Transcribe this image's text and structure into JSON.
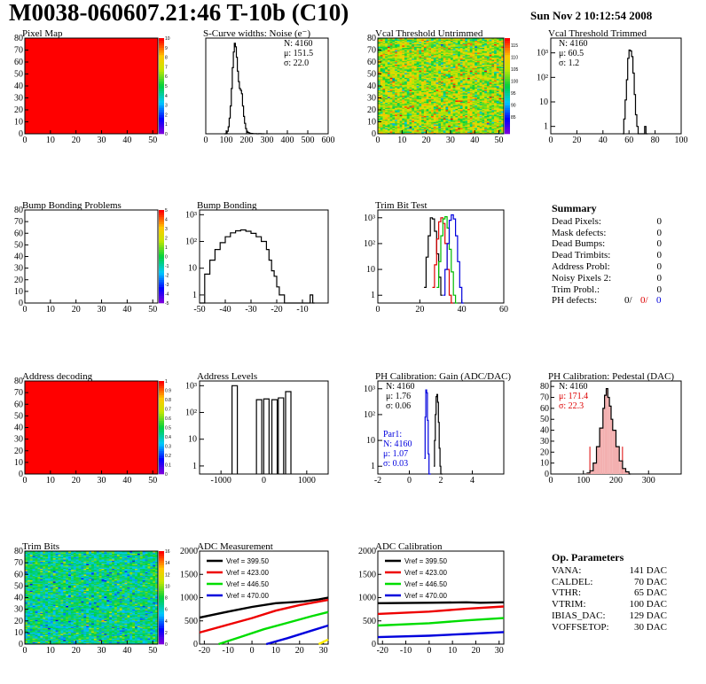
{
  "header": {
    "title": "M0038-060607.21:46 T-10b (C10)",
    "timestamp": "Sun Nov  2 10:12:54 2008"
  },
  "summary": {
    "title": "Summary",
    "rows": [
      {
        "label": "Dead Pixels:",
        "value": "0"
      },
      {
        "label": "Mask defects:",
        "value": "0"
      },
      {
        "label": "Dead Bumps:",
        "value": "0"
      },
      {
        "label": "Dead Trimbits:",
        "value": "0"
      },
      {
        "label": "Address Probl:",
        "value": "0"
      },
      {
        "label": "Noisy Pixels 2:",
        "value": "0"
      },
      {
        "label": "Trim Probl.:",
        "value": "0"
      }
    ],
    "ph_defects": {
      "label": "PH defects:",
      "v1": "0/",
      "v2": "0/",
      "v3": "0",
      "color1": "#000000",
      "color2": "#dd0000",
      "color3": "#0000dd"
    }
  },
  "op_parameters": {
    "title": "Op. Parameters",
    "rows": [
      {
        "label": "VANA:",
        "value": "141 DAC"
      },
      {
        "label": "CALDEL:",
        "value": "70 DAC"
      },
      {
        "label": "VTHR:",
        "value": "65 DAC"
      },
      {
        "label": "VTRIM:",
        "value": "100 DAC"
      },
      {
        "label": "IBIAS_DAC:",
        "value": "129 DAC"
      },
      {
        "label": "VOFFSETOP:",
        "value": "30 DAC"
      }
    ]
  },
  "chart_data": [
    {
      "id": "pixel-map",
      "type": "heatmap",
      "title": "Pixel Map",
      "xlim": [
        0,
        52
      ],
      "ylim": [
        0,
        80
      ],
      "xticks": [
        "0",
        "10",
        "20",
        "30",
        "40",
        "50"
      ],
      "yticks": [
        "0",
        "10",
        "20",
        "30",
        "40",
        "50",
        "60",
        "70",
        "80"
      ],
      "zlim": [
        0,
        10
      ],
      "zticks": [
        "0",
        "1",
        "2",
        "3",
        "4",
        "5",
        "6",
        "7",
        "8",
        "9",
        "10"
      ],
      "fill_value": 10,
      "fill_color": "#ff0000"
    },
    {
      "id": "scurve",
      "type": "histogram",
      "title": "S-Curve widths: Noise (e⁻)",
      "xlim": [
        0,
        600
      ],
      "ylim": [
        0,
        550
      ],
      "xticks": [
        "0",
        "100",
        "200",
        "300",
        "400",
        "500",
        "600"
      ],
      "yticks": [],
      "stats": [
        {
          "text": "N: 4160",
          "color": "#000"
        },
        {
          "text": "μ: 151.5",
          "color": "#000"
        },
        {
          "text": "σ: 22.0",
          "color": "#000"
        }
      ],
      "series": [
        {
          "color": "#000",
          "x": [
            90,
            100,
            105,
            110,
            115,
            120,
            125,
            130,
            135,
            140,
            145,
            150,
            155,
            160,
            165,
            170,
            175,
            180,
            185,
            190,
            195,
            200,
            205,
            210,
            215,
            220,
            230,
            240,
            250,
            260,
            270,
            280
          ],
          "values": [
            0,
            5,
            15,
            40,
            90,
            160,
            260,
            380,
            470,
            520,
            500,
            440,
            360,
            300,
            260,
            250,
            230,
            160,
            100,
            60,
            30,
            15,
            8,
            6,
            3,
            2,
            1,
            1,
            0,
            1,
            0,
            0
          ]
        }
      ]
    },
    {
      "id": "vcal-untrimmed",
      "type": "heatmap",
      "title": "Vcal Threshold Untrimmed",
      "xlim": [
        0,
        52
      ],
      "ylim": [
        0,
        80
      ],
      "xticks": [
        "0",
        "10",
        "20",
        "30",
        "40",
        "50"
      ],
      "yticks": [
        "0",
        "10",
        "20",
        "30",
        "40",
        "50",
        "60",
        "70",
        "80"
      ],
      "zlim": [
        78,
        118
      ],
      "zticks": [
        "85",
        "90",
        "95",
        "100",
        "105",
        "110",
        "115"
      ],
      "mean": 104,
      "spread": 5
    },
    {
      "id": "vcal-trimmed",
      "type": "histogram",
      "title": "Vcal Threshold Trimmed",
      "xlim": [
        0,
        100
      ],
      "ylog": true,
      "ylim": [
        0.5,
        4000
      ],
      "xticks": [
        "0",
        "20",
        "40",
        "60",
        "80",
        "100"
      ],
      "yticks": [
        "1",
        "10",
        "10²",
        "10³"
      ],
      "stats": [
        {
          "text": "N: 4160",
          "color": "#000"
        },
        {
          "text": "μ: 60.5",
          "color": "#000"
        },
        {
          "text": "σ:  1.2",
          "color": "#000"
        }
      ],
      "series": [
        {
          "color": "#000",
          "x": [
            55,
            56,
            57,
            58,
            59,
            60,
            61,
            62,
            63,
            64,
            65,
            66,
            67,
            72,
            73
          ],
          "values": [
            0,
            2,
            12,
            80,
            600,
            1300,
            1200,
            700,
            150,
            20,
            3,
            1,
            0,
            1,
            0
          ]
        }
      ]
    },
    {
      "id": "bump-bonding-problems",
      "type": "heatmap",
      "title": "Bump Bonding Problems",
      "xlim": [
        0,
        52
      ],
      "ylim": [
        0,
        80
      ],
      "xticks": [
        "0",
        "10",
        "20",
        "30",
        "40",
        "50"
      ],
      "yticks": [
        "0",
        "10",
        "20",
        "30",
        "40",
        "50",
        "60",
        "70",
        "80"
      ],
      "zlim": [
        -5,
        5
      ],
      "zticks": [
        "-5",
        "-4",
        "-3",
        "-2",
        "-1",
        "0",
        "1",
        "2",
        "3",
        "4",
        "5"
      ],
      "fill_value": null,
      "fill_color": "#ffffff"
    },
    {
      "id": "bump-bonding",
      "type": "histogram",
      "title": "Bump Bonding",
      "xlim": [
        -50,
        0
      ],
      "ylog": true,
      "ylim": [
        0.5,
        1500
      ],
      "xticks": [
        "-50",
        "-40",
        "-30",
        "-20",
        "-10"
      ],
      "yticks": [
        "1",
        "10",
        "10²",
        "10³"
      ],
      "series": [
        {
          "color": "#000",
          "x": [
            -50,
            -48,
            -46,
            -44,
            -42,
            -40,
            -38,
            -36,
            -34,
            -32,
            -30,
            -28,
            -26,
            -24,
            -23,
            -22,
            -21,
            -20,
            -19,
            -18,
            -17,
            -7,
            -6
          ],
          "values": [
            0,
            6,
            20,
            50,
            90,
            150,
            210,
            250,
            270,
            240,
            200,
            150,
            100,
            50,
            20,
            8,
            5,
            2,
            1,
            1,
            0,
            1,
            0
          ]
        }
      ]
    },
    {
      "id": "trim-bit-test",
      "type": "histogram",
      "title": "Trim Bit Test",
      "xlim": [
        0,
        60
      ],
      "ylog": true,
      "ylim": [
        0.5,
        2000
      ],
      "xticks": [
        "0",
        "20",
        "40",
        "60"
      ],
      "yticks": [
        "1",
        "10",
        "10²",
        "10³"
      ],
      "series": [
        {
          "name": "",
          "color": "#000000",
          "x": [
            22,
            23,
            24,
            25,
            26,
            27,
            28,
            29,
            30
          ],
          "values": [
            2,
            30,
            200,
            1000,
            900,
            300,
            40,
            5,
            1
          ]
        },
        {
          "name": "",
          "color": "#dd0000",
          "x": [
            26,
            27,
            28,
            29,
            30,
            31,
            32,
            33,
            34,
            35
          ],
          "values": [
            2,
            15,
            150,
            700,
            1000,
            600,
            100,
            10,
            1,
            0
          ]
        },
        {
          "name": "",
          "color": "#00bb00",
          "x": [
            28,
            29,
            30,
            31,
            32,
            33,
            34,
            35,
            36,
            37
          ],
          "values": [
            2,
            20,
            200,
            900,
            1100,
            400,
            60,
            8,
            1,
            0
          ]
        },
        {
          "name": "",
          "color": "#0000dd",
          "x": [
            31,
            32,
            33,
            34,
            35,
            36,
            37,
            38,
            39,
            40
          ],
          "values": [
            1,
            10,
            100,
            800,
            1300,
            900,
            200,
            20,
            2,
            0
          ]
        }
      ]
    },
    {
      "id": "address-decoding",
      "type": "heatmap",
      "title": "Address decoding",
      "xlim": [
        0,
        52
      ],
      "ylim": [
        0,
        80
      ],
      "xticks": [
        "0",
        "10",
        "20",
        "30",
        "40",
        "50"
      ],
      "yticks": [
        "0",
        "10",
        "20",
        "30",
        "40",
        "50",
        "60",
        "70",
        "80"
      ],
      "zlim": [
        0,
        1
      ],
      "zticks": [
        "0",
        "0.1",
        "0.2",
        "0.3",
        "0.4",
        "0.5",
        "0.6",
        "0.7",
        "0.8",
        "0.9",
        "1"
      ],
      "fill_value": 1,
      "fill_color": "#ff0000"
    },
    {
      "id": "address-levels",
      "type": "histogram",
      "title": "Address Levels",
      "xlim": [
        -1500,
        1500
      ],
      "ylog": true,
      "ylim": [
        0.5,
        1500
      ],
      "xticks": [
        "-1000",
        "0",
        "1000"
      ],
      "yticks": [
        "1",
        "10",
        "10²",
        "10³"
      ],
      "series": [
        {
          "color": "#000",
          "peaks": [
            -660,
            -90,
            80,
            270,
            420,
            590
          ],
          "heights": [
            1000,
            300,
            320,
            300,
            350,
            600
          ]
        }
      ]
    },
    {
      "id": "ph-gain",
      "type": "histogram",
      "title": "PH Calibration: Gain (ADC/DAC)",
      "xlim": [
        -2,
        6
      ],
      "ylog": true,
      "ylim": [
        0.5,
        2000
      ],
      "xticks": [
        "-2",
        "0",
        "2",
        "4"
      ],
      "yticks": [
        "1",
        "10",
        "10²",
        "10³"
      ],
      "stats": [
        {
          "text": "N: 4160",
          "color": "#000"
        },
        {
          "text": "μ: 1.76",
          "color": "#000"
        },
        {
          "text": "σ: 0.06",
          "color": "#000"
        }
      ],
      "stats2": [
        {
          "text": "Par1:",
          "color": "#0000dd"
        },
        {
          "text": "N: 4160",
          "color": "#0000dd"
        },
        {
          "text": "μ: 1.07",
          "color": "#0000dd"
        },
        {
          "text": "σ: 0.03",
          "color": "#0000dd"
        }
      ],
      "series": [
        {
          "name": "",
          "color": "#000000",
          "x": [
            1.55,
            1.6,
            1.65,
            1.7,
            1.75,
            1.8,
            1.85,
            1.9,
            1.95,
            2.0
          ],
          "values": [
            1,
            10,
            100,
            500,
            600,
            300,
            50,
            5,
            1,
            0
          ]
        },
        {
          "name": "",
          "color": "#0000dd",
          "x": [
            0.95,
            1.0,
            1.05,
            1.1,
            1.15,
            1.2,
            1.25
          ],
          "values": [
            2,
            80,
            900,
            700,
            60,
            3,
            0
          ]
        }
      ]
    },
    {
      "id": "ph-pedestal",
      "type": "histogram",
      "title": "PH Calibration: Pedestal (DAC)",
      "xlim": [
        0,
        400
      ],
      "ylim": [
        0,
        85
      ],
      "xticks": [
        "0",
        "100",
        "200",
        "300"
      ],
      "yticks": [
        "0",
        "10",
        "20",
        "30",
        "40",
        "50",
        "60",
        "70",
        "80"
      ],
      "stats": [
        {
          "text": "N: 4160",
          "color": "#000"
        },
        {
          "text": "μ: 171.4",
          "color": "#dd0000"
        },
        {
          "text": "σ: 22.3",
          "color": "#dd0000"
        }
      ],
      "markers": [
        120,
        220
      ],
      "series": [
        {
          "color": "#000",
          "x": [
            110,
            120,
            130,
            140,
            150,
            160,
            165,
            170,
            175,
            180,
            185,
            190,
            200,
            210,
            220,
            230,
            240
          ],
          "values": [
            1,
            3,
            10,
            25,
            42,
            60,
            72,
            78,
            70,
            62,
            50,
            40,
            25,
            12,
            5,
            2,
            0
          ]
        }
      ]
    },
    {
      "id": "trim-bits",
      "type": "heatmap",
      "title": "Trim Bits",
      "xlim": [
        0,
        52
      ],
      "ylim": [
        0,
        80
      ],
      "xticks": [
        "0",
        "10",
        "20",
        "30",
        "40",
        "50"
      ],
      "yticks": [
        "0",
        "10",
        "20",
        "30",
        "40",
        "50",
        "60",
        "70",
        "80"
      ],
      "zlim": [
        0,
        16
      ],
      "zticks": [
        "0",
        "2",
        "4",
        "6",
        "8",
        "10",
        "12",
        "14",
        "16"
      ],
      "mean": 7,
      "spread": 1.6
    },
    {
      "id": "adc-measurement",
      "type": "line",
      "title": "ADC Measurement",
      "xlim": [
        -22,
        32
      ],
      "ylim": [
        0,
        2000
      ],
      "xticks": [
        "-20",
        "-10",
        "0",
        "10",
        "20",
        "30"
      ],
      "yticks": [
        "0",
        "500",
        "1000",
        "1500",
        "2000"
      ],
      "series": [
        {
          "name": "Vref = 399.50",
          "color": "#000000",
          "x": [
            -22,
            -10,
            0,
            10,
            16,
            22,
            28,
            32
          ],
          "values": [
            570,
            700,
            800,
            880,
            900,
            920,
            960,
            1000
          ]
        },
        {
          "name": "Vref = 423.00",
          "color": "#ee0000",
          "x": [
            -22,
            -10,
            0,
            10,
            20,
            32
          ],
          "values": [
            250,
            420,
            560,
            720,
            840,
            950
          ]
        },
        {
          "name": "Vref = 446.50",
          "color": "#00dd00",
          "x": [
            -14,
            -5,
            5,
            15,
            25,
            32
          ],
          "values": [
            0,
            150,
            320,
            460,
            600,
            690
          ]
        },
        {
          "name": "Vref = 470.00",
          "color": "#0000dd",
          "x": [
            6,
            15,
            25,
            32
          ],
          "values": [
            0,
            130,
            290,
            400
          ]
        },
        {
          "name": "",
          "color": "#ffee00",
          "x": [
            28,
            32
          ],
          "values": [
            0,
            100
          ]
        }
      ]
    },
    {
      "id": "adc-calibration",
      "type": "line",
      "title": "ADC Calibration",
      "xlim": [
        -22,
        32
      ],
      "ylim": [
        0,
        2000
      ],
      "xticks": [
        "-20",
        "-10",
        "0",
        "10",
        "20",
        "30"
      ],
      "yticks": [
        "0",
        "500",
        "1000",
        "1500",
        "2000"
      ],
      "series": [
        {
          "name": "Vref = 399.50",
          "color": "#000000",
          "x": [
            -22,
            0,
            16,
            22,
            32
          ],
          "values": [
            880,
            890,
            900,
            890,
            900
          ]
        },
        {
          "name": "Vref = 423.00",
          "color": "#ee0000",
          "x": [
            -22,
            0,
            16,
            32
          ],
          "values": [
            650,
            700,
            760,
            810
          ]
        },
        {
          "name": "Vref = 446.50",
          "color": "#00dd00",
          "x": [
            -22,
            0,
            16,
            32
          ],
          "values": [
            400,
            450,
            510,
            560
          ]
        },
        {
          "name": "Vref = 470.00",
          "color": "#0000dd",
          "x": [
            -22,
            0,
            16,
            32
          ],
          "values": [
            150,
            180,
            220,
            260
          ]
        }
      ]
    }
  ]
}
